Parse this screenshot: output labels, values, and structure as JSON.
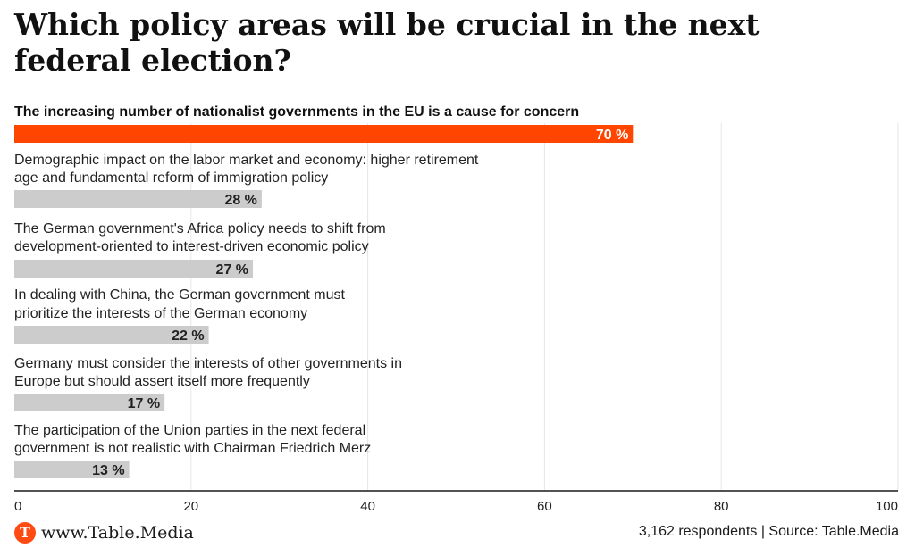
{
  "title": "Which policy areas will be crucial in the next federal election?",
  "chart_data": {
    "type": "bar",
    "orientation": "horizontal",
    "xlim": [
      0,
      100
    ],
    "xticks": [
      0,
      20,
      40,
      60,
      80,
      100
    ],
    "grid": true,
    "value_suffix": " %",
    "highlight_color": "#ff4500",
    "bar_color": "#cccccc",
    "categories": [
      [
        "The increasing number of nationalist governments in the EU is a cause for concern"
      ],
      [
        "Demographic impact on the labor market and economy: higher retirement",
        "age and fundamental reform of immigration policy"
      ],
      [
        "The German government's Africa policy needs to shift from",
        "development-oriented to interest-driven economic policy"
      ],
      [
        "In dealing with China, the German government must",
        "prioritize the interests of the German economy"
      ],
      [
        "Germany must consider the interests of other governments in",
        "Europe but should assert itself more frequently"
      ],
      [
        "The participation of the Union parties in the next federal",
        "government is not realistic with Chairman Friedrich Merz"
      ]
    ],
    "values": [
      70,
      28,
      27,
      22,
      17,
      13
    ],
    "highlight_index": 0
  },
  "footer": {
    "logo_letter": "T",
    "site": "www.Table.Media",
    "source": "3,162 respondents | Source: Table.Media"
  }
}
